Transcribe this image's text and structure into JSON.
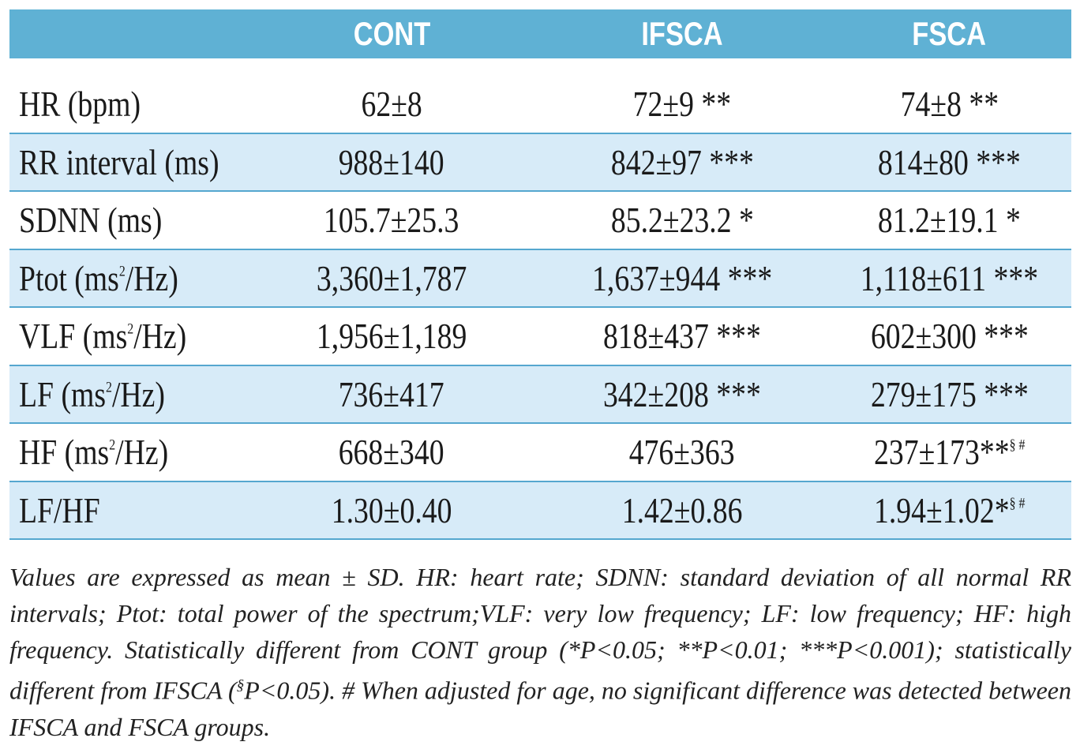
{
  "header": {
    "col0": "",
    "col1": "CONT",
    "col2": "IFSCA",
    "col3": "FSCA"
  },
  "rows": [
    {
      "label": "HR (bpm)",
      "cont": "62±8",
      "ifsca": "72±9 **",
      "fsca": "74±8 **",
      "shaded": false
    },
    {
      "label": "RR interval (ms)",
      "cont": "988±140",
      "ifsca": "842±97 ***",
      "fsca": "814±80 ***",
      "shaded": true
    },
    {
      "label": "SDNN (ms)",
      "cont": "105.7±25.3",
      "ifsca": "85.2±23.2 *",
      "fsca": "81.2±19.1 *",
      "shaded": false
    },
    {
      "label_main": "Ptot (ms",
      "label_sup": "2",
      "label_tail": "/Hz)",
      "cont": "3,360±1,787",
      "ifsca": "1,637±944 ***",
      "fsca": "1,118±611 ***",
      "shaded": true
    },
    {
      "label_main": "VLF (ms",
      "label_sup": "2",
      "label_tail": "/Hz)",
      "cont": "1,956±1,189",
      "ifsca": "818±437 ***",
      "fsca": "602±300 ***",
      "shaded": false
    },
    {
      "label_main": "LF (ms",
      "label_sup": "2",
      "label_tail": "/Hz)",
      "cont": "736±417",
      "ifsca": "342±208 ***",
      "fsca": "279±175 ***",
      "shaded": true
    },
    {
      "label_main": "HF (ms",
      "label_sup": "2",
      "label_tail": "/Hz)",
      "cont": "668±340",
      "ifsca": "476±363",
      "fsca_main": "237±173**",
      "fsca_sup": "§ #",
      "shaded": false
    },
    {
      "label": "LF/HF",
      "cont": "1.30±0.40",
      "ifsca": "1.42±0.86",
      "fsca_main": "1.94±1.02*",
      "fsca_sup": "§ #",
      "shaded": true
    }
  ],
  "footnote": {
    "part1": "Values are expressed as mean ± SD. HR: heart rate; SDNN: standard deviation of all normal RR intervals; Ptot: total power of the spectrum;VLF: very low frequency; LF: low frequency; HF: high frequency. Statistically different from CONT group (*P<0.05; **P<0.01; ***P<0.001); statistically different from IFSCA (",
    "sup": "§",
    "part2": "P<0.05). # When adjusted for age,  no significant difference was detected between IFSCA and FSCA groups."
  }
}
